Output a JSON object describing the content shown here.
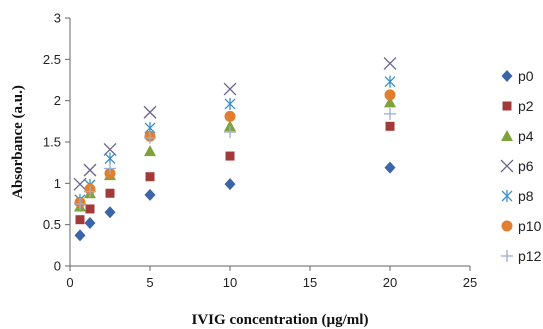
{
  "chart_data": {
    "type": "scatter",
    "title": "",
    "xlabel": "IVIG concentration  (µg/ml)",
    "ylabel": "Absorbance  (a.u.)",
    "xlim": [
      0,
      25
    ],
    "ylim": [
      0,
      3
    ],
    "x_ticks": [
      0,
      5,
      10,
      15,
      20,
      25
    ],
    "y_ticks": [
      0,
      0.5,
      1,
      1.5,
      2,
      2.5,
      3
    ],
    "y_tick_labels": [
      "0",
      "0.5",
      "1",
      "1.5",
      "2",
      "2.5",
      "3"
    ],
    "grid": false,
    "legend_position": "right",
    "x": [
      0.625,
      1.25,
      2.5,
      5,
      10,
      20
    ],
    "series": [
      {
        "name": "p0",
        "marker": "diamond",
        "color": "#3a65a8",
        "values": [
          0.37,
          0.52,
          0.65,
          0.86,
          0.99,
          1.19
        ]
      },
      {
        "name": "p2",
        "marker": "square",
        "color": "#a33a3a",
        "values": [
          0.56,
          0.69,
          0.88,
          1.08,
          1.33,
          1.69
        ]
      },
      {
        "name": "p4",
        "marker": "triangle",
        "color": "#7fa23a",
        "values": [
          0.72,
          0.88,
          1.1,
          1.39,
          1.69,
          1.98
        ]
      },
      {
        "name": "p6",
        "marker": "x",
        "color": "#6a6590",
        "values": [
          0.99,
          1.16,
          1.41,
          1.86,
          2.14,
          2.45
        ]
      },
      {
        "name": "p8",
        "marker": "star",
        "color": "#3a8fc8",
        "values": [
          0.8,
          0.98,
          1.3,
          1.67,
          1.96,
          2.23
        ]
      },
      {
        "name": "p10",
        "marker": "circle",
        "color": "#e07f2f",
        "values": [
          0.77,
          0.93,
          1.12,
          1.57,
          1.81,
          2.07
        ]
      },
      {
        "name": "p12",
        "marker": "plus",
        "color": "#9aaed0",
        "values": [
          0.75,
          0.9,
          1.18,
          1.55,
          1.62,
          1.84
        ]
      }
    ]
  }
}
